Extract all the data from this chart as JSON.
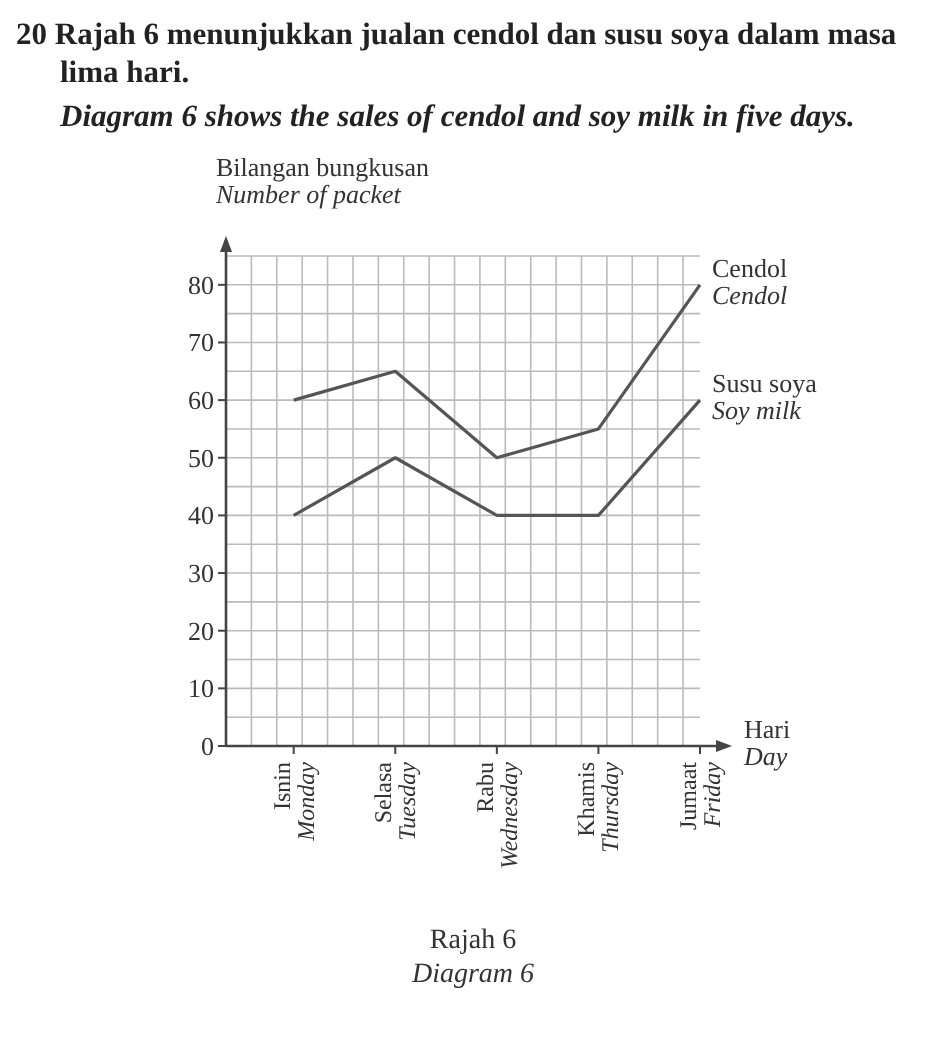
{
  "chart_data": {
    "type": "line",
    "title": "20 Rajah 6 menunjukkan jualan cendol dan susu soya dalam masa lima hari.",
    "subtitle": "Diagram 6 shows the sales of cendol and soy milk in five days.",
    "ylabel": "Bilangan bungkusan\nNumber of packet",
    "xlabel": "Hari\nDay",
    "categories": [
      "Isnin\nMonday",
      "Selasa\nTuesday",
      "Rabu\nWednesday",
      "Khamis\nThursday",
      "Jumaat\nFriday"
    ],
    "series": [
      {
        "name": "Cendol\nCendol",
        "color": "#555555",
        "values": [
          60,
          65,
          50,
          55,
          80
        ]
      },
      {
        "name": "Susu soya\nSoy milk",
        "color": "#555555",
        "values": [
          40,
          50,
          40,
          40,
          60
        ]
      }
    ],
    "ylim": [
      0,
      85
    ],
    "yticks": [
      0,
      10,
      20,
      30,
      40,
      50,
      60,
      70,
      80
    ],
    "grid": true,
    "marker": "none",
    "line_style": "solid",
    "annotations": [
      "Rajah 6",
      "Diagram 6"
    ]
  }
}
